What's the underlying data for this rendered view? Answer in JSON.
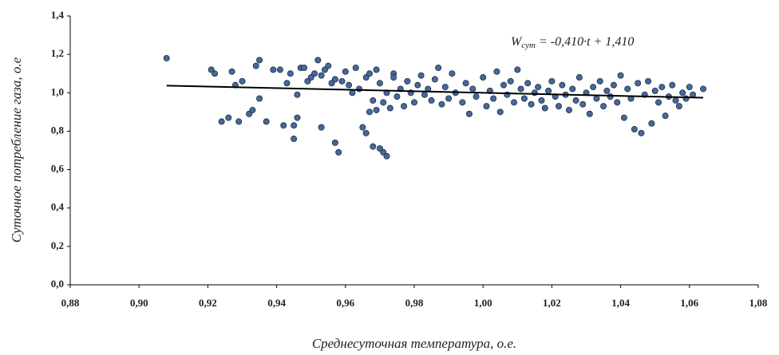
{
  "chart_data": {
    "type": "scatter",
    "xlabel": "Среднесуточная температура, о.е.",
    "ylabel": "Суточное потребление газа, о.е",
    "annotation": {
      "symbol": "W",
      "subscript": "сут",
      "rest": " = -0,410·t + 1,410"
    },
    "xlim": [
      0.88,
      1.08
    ],
    "ylim": [
      0,
      1.4
    ],
    "xticks": [
      {
        "value": 0.88,
        "label": "0,88"
      },
      {
        "value": 0.9,
        "label": "0,90"
      },
      {
        "value": 0.92,
        "label": "0,92"
      },
      {
        "value": 0.94,
        "label": "0,94"
      },
      {
        "value": 0.96,
        "label": "0,96"
      },
      {
        "value": 0.98,
        "label": "0,98"
      },
      {
        "value": 1.0,
        "label": "1,00"
      },
      {
        "value": 1.02,
        "label": "1,02"
      },
      {
        "value": 1.04,
        "label": "1,04"
      },
      {
        "value": 1.06,
        "label": "1,06"
      },
      {
        "value": 1.08,
        "label": "1,08"
      }
    ],
    "yticks": [
      {
        "value": 0,
        "label": "0,0"
      },
      {
        "value": 0.2,
        "label": "0,2"
      },
      {
        "value": 0.4,
        "label": "0,4"
      },
      {
        "value": 0.6,
        "label": "0,6"
      },
      {
        "value": 0.8,
        "label": "0,8"
      },
      {
        "value": 1.0,
        "label": "1,0"
      },
      {
        "value": 1.2,
        "label": "1,2"
      },
      {
        "value": 1.4,
        "label": "1,4"
      }
    ],
    "grid": false,
    "series": [
      {
        "color": "#46689a",
        "x": [
          0.908,
          0.921,
          0.922,
          0.924,
          0.926,
          0.927,
          0.928,
          0.929,
          0.93,
          0.932,
          0.933,
          0.934,
          0.935,
          0.935,
          0.937,
          0.939,
          0.941,
          0.942,
          0.943,
          0.944,
          0.945,
          0.945,
          0.946,
          0.946,
          0.947,
          0.948,
          0.949,
          0.95,
          0.951,
          0.952,
          0.953,
          0.953,
          0.954,
          0.955,
          0.956,
          0.957,
          0.957,
          0.958,
          0.959,
          0.96,
          0.961,
          0.962,
          0.963,
          0.964,
          0.965,
          0.966,
          0.966,
          0.967,
          0.967,
          0.968,
          0.968,
          0.969,
          0.969,
          0.97,
          0.97,
          0.971,
          0.971,
          0.972,
          0.972,
          0.973,
          0.974,
          0.974,
          0.975,
          0.976,
          0.977,
          0.978,
          0.979,
          0.98,
          0.981,
          0.982,
          0.983,
          0.984,
          0.985,
          0.986,
          0.987,
          0.988,
          0.989,
          0.99,
          0.991,
          0.992,
          0.994,
          0.995,
          0.996,
          0.997,
          0.998,
          1.0,
          1.001,
          1.002,
          1.003,
          1.004,
          1.005,
          1.006,
          1.007,
          1.008,
          1.009,
          1.01,
          1.011,
          1.012,
          1.013,
          1.014,
          1.015,
          1.016,
          1.017,
          1.018,
          1.019,
          1.02,
          1.021,
          1.022,
          1.023,
          1.024,
          1.025,
          1.026,
          1.027,
          1.028,
          1.029,
          1.03,
          1.031,
          1.032,
          1.033,
          1.034,
          1.035,
          1.036,
          1.037,
          1.038,
          1.039,
          1.04,
          1.041,
          1.042,
          1.043,
          1.044,
          1.045,
          1.046,
          1.047,
          1.048,
          1.049,
          1.05,
          1.051,
          1.052,
          1.053,
          1.054,
          1.055,
          1.056,
          1.057,
          1.058,
          1.059,
          1.06,
          1.061,
          1.064
        ],
        "values": [
          1.18,
          1.12,
          1.1,
          0.85,
          0.87,
          1.11,
          1.04,
          0.85,
          1.06,
          0.89,
          0.91,
          1.14,
          1.17,
          0.97,
          0.85,
          1.12,
          1.12,
          0.83,
          1.05,
          1.1,
          0.76,
          0.83,
          0.87,
          0.99,
          1.13,
          1.13,
          1.06,
          1.08,
          1.1,
          1.17,
          0.82,
          1.09,
          1.12,
          1.14,
          1.05,
          0.74,
          1.07,
          0.69,
          1.06,
          1.11,
          1.04,
          1.0,
          1.13,
          1.02,
          0.82,
          0.79,
          1.08,
          0.9,
          1.1,
          0.72,
          0.96,
          1.12,
          0.91,
          0.71,
          1.05,
          0.69,
          0.95,
          0.67,
          1.0,
          0.92,
          1.1,
          1.08,
          0.98,
          1.02,
          0.93,
          1.06,
          1.0,
          0.95,
          1.04,
          1.09,
          0.99,
          1.02,
          0.96,
          1.07,
          1.13,
          0.94,
          1.03,
          0.97,
          1.1,
          1.0,
          0.95,
          1.05,
          0.89,
          1.02,
          0.98,
          1.08,
          0.93,
          1.01,
          0.97,
          1.11,
          0.9,
          1.04,
          0.99,
          1.06,
          0.95,
          1.12,
          1.02,
          0.97,
          1.05,
          0.94,
          1.0,
          1.03,
          0.96,
          0.92,
          1.01,
          1.06,
          0.98,
          0.93,
          1.04,
          0.99,
          0.91,
          1.02,
          0.96,
          1.08,
          0.94,
          1.0,
          0.89,
          1.03,
          0.97,
          1.06,
          0.93,
          1.01,
          0.98,
          1.04,
          0.95,
          1.09,
          0.87,
          1.02,
          0.97,
          0.81,
          1.05,
          0.79,
          0.99,
          1.06,
          0.84,
          1.01,
          0.95,
          1.03,
          0.88,
          0.98,
          1.04,
          0.96,
          0.93,
          1.0,
          0.97,
          1.03,
          0.99,
          1.02
        ]
      }
    ],
    "trendline": {
      "color": "#000000",
      "x": [
        0.908,
        1.064
      ],
      "values": [
        1.037,
        0.974
      ]
    }
  }
}
